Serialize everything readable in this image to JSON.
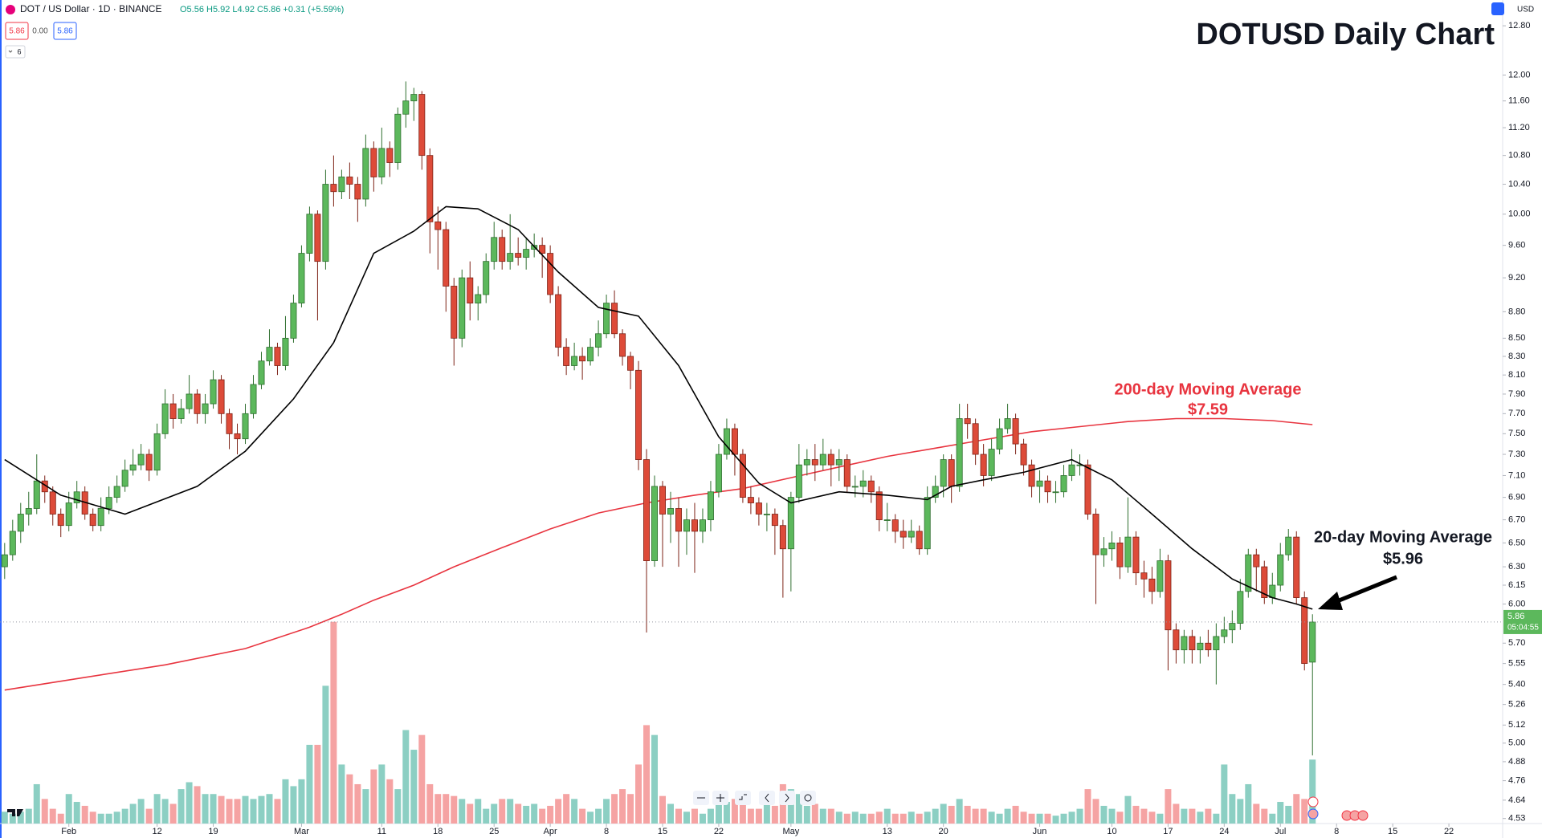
{
  "header": {
    "symbol": "DOT / US Dollar · 1D · BINANCE",
    "ohlc": "O5.56 H5.92 L4.92 C5.86 +0.31 (+5.59%)",
    "bid": "5.86",
    "spread": "0.00",
    "ask": "5.86",
    "indicators": "6",
    "currency": "USD",
    "countdown": "05:04:55"
  },
  "chart_data": {
    "type": "candlestick",
    "title": "DOTUSD Daily Chart",
    "log_scale": true,
    "grid": false,
    "up_color": "#5cb85c",
    "down_color": "#dd4b39",
    "up_border": "#2f6f2f",
    "down_border": "#7d2216",
    "volume_up_color": "#8ccfc3",
    "volume_down_color": "#f5a3a3",
    "xlim": [
      -0.58,
      186.7
    ],
    "xticks": [
      {
        "value": 8,
        "label": "Feb"
      },
      {
        "value": 19,
        "label": "12"
      },
      {
        "value": 26,
        "label": "19"
      },
      {
        "value": 37,
        "label": "Mar"
      },
      {
        "value": 47,
        "label": "11"
      },
      {
        "value": 54,
        "label": "18"
      },
      {
        "value": 61,
        "label": "25"
      },
      {
        "value": 68,
        "label": "Apr"
      },
      {
        "value": 75,
        "label": "8"
      },
      {
        "value": 82,
        "label": "15"
      },
      {
        "value": 89,
        "label": "22"
      },
      {
        "value": 98,
        "label": "May"
      },
      {
        "value": 110,
        "label": "13"
      },
      {
        "value": 117,
        "label": "20"
      },
      {
        "value": 129,
        "label": "Jun"
      },
      {
        "value": 138,
        "label": "10"
      },
      {
        "value": 145,
        "label": "17"
      },
      {
        "value": 152,
        "label": "24"
      },
      {
        "value": 159,
        "label": "Jul"
      },
      {
        "value": 166,
        "label": "8"
      },
      {
        "value": 173,
        "label": "15"
      },
      {
        "value": 180,
        "label": "22"
      }
    ],
    "ylim": [
      4.5,
      13.24
    ],
    "yticks": [
      {
        "value": 12.8,
        "label": "12.80"
      },
      {
        "value": 12,
        "label": "12.00"
      },
      {
        "value": 11.6,
        "label": "11.60"
      },
      {
        "value": 11.2,
        "label": "11.20"
      },
      {
        "value": 10.8,
        "label": "10.80"
      },
      {
        "value": 10.4,
        "label": "10.40"
      },
      {
        "value": 10,
        "label": "10.00"
      },
      {
        "value": 9.6,
        "label": "9.60"
      },
      {
        "value": 9.2,
        "label": "9.20"
      },
      {
        "value": 8.8,
        "label": "8.80"
      },
      {
        "value": 8.5,
        "label": "8.50"
      },
      {
        "value": 8.3,
        "label": "8.30"
      },
      {
        "value": 8.1,
        "label": "8.10"
      },
      {
        "value": 7.9,
        "label": "7.90"
      },
      {
        "value": 7.7,
        "label": "7.70"
      },
      {
        "value": 7.5,
        "label": "7.50"
      },
      {
        "value": 7.3,
        "label": "7.30"
      },
      {
        "value": 7.1,
        "label": "7.10"
      },
      {
        "value": 6.9,
        "label": "6.90"
      },
      {
        "value": 6.7,
        "label": "6.70"
      },
      {
        "value": 6.5,
        "label": "6.50"
      },
      {
        "value": 6.3,
        "label": "6.30"
      },
      6.15,
      {
        "value": 6,
        "label": "6.00"
      },
      {
        "value": 5.7,
        "label": "5.70"
      },
      5.55,
      {
        "value": 5.4,
        "label": "5.40"
      },
      5.26,
      5.12,
      {
        "value": 5,
        "label": "5.00"
      },
      4.88,
      4.76,
      4.64,
      4.53
    ],
    "open": [
      6.3,
      6.4,
      6.6,
      6.75,
      6.8,
      7.05,
      6.95,
      6.75,
      6.65,
      6.85,
      6.95,
      6.75,
      6.65,
      6.8,
      6.9,
      7.0,
      7.15,
      7.2,
      7.3,
      7.15,
      7.5,
      7.8,
      7.65,
      7.75,
      7.9,
      7.7,
      7.8,
      8.05,
      7.7,
      7.5,
      7.45,
      7.7,
      8.0,
      8.25,
      8.4,
      8.2,
      8.5,
      8.9,
      9.5,
      10.0,
      9.4,
      10.4,
      10.3,
      10.5,
      10.4,
      10.2,
      10.9,
      10.5,
      10.9,
      10.7,
      11.4,
      11.6,
      11.7,
      10.8,
      9.9,
      9.8,
      9.1,
      8.5,
      9.2,
      8.9,
      9.0,
      9.4,
      9.7,
      9.4,
      9.5,
      9.45,
      9.55,
      9.6,
      9.5,
      9.0,
      8.4,
      8.2,
      8.3,
      8.25,
      8.4,
      8.55,
      8.9,
      8.55,
      8.3,
      8.15,
      7.25,
      6.35,
      7.0,
      6.75,
      6.8,
      6.6,
      6.7,
      6.6,
      6.7,
      6.95,
      7.3,
      7.55,
      7.3,
      6.9,
      6.85,
      6.75,
      6.75,
      6.65,
      6.45,
      6.9,
      7.2,
      7.25,
      7.2,
      7.3,
      7.2,
      7.25,
      7.0,
      7.0,
      7.05,
      6.95,
      6.7,
      6.7,
      6.6,
      6.55,
      6.6,
      6.45,
      6.9,
      7.0,
      7.25,
      7.0,
      7.65,
      7.6,
      7.3,
      7.1,
      7.35,
      7.55,
      7.65,
      7.4,
      7.2,
      7.0,
      7.05,
      6.95,
      6.95,
      7.1,
      7.2,
      7.2,
      6.75,
      6.4,
      6.45,
      6.5,
      6.3,
      6.55,
      6.25,
      6.2,
      6.1,
      6.35,
      5.8,
      5.65,
      5.75,
      5.65,
      5.7,
      5.65,
      5.75,
      5.8,
      5.85,
      6.1,
      6.4,
      6.3,
      6.05,
      6.15,
      6.4,
      6.55,
      6.05,
      5.56
    ],
    "high": [
      6.5,
      6.7,
      6.85,
      6.95,
      7.3,
      7.1,
      7.0,
      6.8,
      6.95,
      7.05,
      7.0,
      6.8,
      6.9,
      7.0,
      7.1,
      7.25,
      7.35,
      7.4,
      7.35,
      7.6,
      7.95,
      7.9,
      7.85,
      8.1,
      7.95,
      7.9,
      8.15,
      8.1,
      7.75,
      7.6,
      7.8,
      8.1,
      8.35,
      8.6,
      8.45,
      8.75,
      9.0,
      9.6,
      10.1,
      10.05,
      10.6,
      10.8,
      10.6,
      10.7,
      10.5,
      11.1,
      11.0,
      11.2,
      11.0,
      11.5,
      11.9,
      11.8,
      11.75,
      10.9,
      10.1,
      9.9,
      9.2,
      9.3,
      9.4,
      9.1,
      9.5,
      9.9,
      9.8,
      10.0,
      9.7,
      9.7,
      9.75,
      9.7,
      9.6,
      9.1,
      8.5,
      8.45,
      8.4,
      8.5,
      8.7,
      9.0,
      9.05,
      8.6,
      8.35,
      8.25,
      7.35,
      7.1,
      7.05,
      6.95,
      6.9,
      6.8,
      6.85,
      6.8,
      7.05,
      7.4,
      7.65,
      7.6,
      7.35,
      7.0,
      6.9,
      6.85,
      6.8,
      6.7,
      6.95,
      7.4,
      7.35,
      7.4,
      7.45,
      7.35,
      7.35,
      7.3,
      7.1,
      7.15,
      7.1,
      7.0,
      6.85,
      6.75,
      6.7,
      6.7,
      6.65,
      7.0,
      7.1,
      7.3,
      7.3,
      7.8,
      7.8,
      7.65,
      7.4,
      7.45,
      7.65,
      7.8,
      7.7,
      7.45,
      7.25,
      7.15,
      7.1,
      7.05,
      7.2,
      7.35,
      7.3,
      7.25,
      6.8,
      6.55,
      6.6,
      6.55,
      6.9,
      6.6,
      6.35,
      6.3,
      6.45,
      6.4,
      5.85,
      5.8,
      5.8,
      5.75,
      5.8,
      5.85,
      5.9,
      5.95,
      6.2,
      6.45,
      6.45,
      6.35,
      6.25,
      6.5,
      6.62,
      6.6,
      6.1,
      5.92
    ],
    "low": [
      6.2,
      6.35,
      6.5,
      6.65,
      6.75,
      6.85,
      6.65,
      6.55,
      6.6,
      6.8,
      6.7,
      6.6,
      6.6,
      6.75,
      6.85,
      6.95,
      7.1,
      7.15,
      7.05,
      7.1,
      7.45,
      7.55,
      7.6,
      7.7,
      7.6,
      7.6,
      7.75,
      7.6,
      7.35,
      7.3,
      7.4,
      7.65,
      7.95,
      8.2,
      8.1,
      8.15,
      8.45,
      8.85,
      9.4,
      8.7,
      9.3,
      10.1,
      10.2,
      10.2,
      9.9,
      10.1,
      10.3,
      10.4,
      10.5,
      10.6,
      11.2,
      11.3,
      10.6,
      9.5,
      9.3,
      8.8,
      8.2,
      8.4,
      8.7,
      8.7,
      8.9,
      9.3,
      9.3,
      9.3,
      9.35,
      9.3,
      9.45,
      9.2,
      8.9,
      8.3,
      8.1,
      8.15,
      8.05,
      8.2,
      8.3,
      8.5,
      8.5,
      8.2,
      7.95,
      7.15,
      5.78,
      6.3,
      6.3,
      6.5,
      6.3,
      6.4,
      6.25,
      6.5,
      6.6,
      6.9,
      7.25,
      7.1,
      6.85,
      6.75,
      6.65,
      6.6,
      6.4,
      6.05,
      6.1,
      6.85,
      7.1,
      7.05,
      7.15,
      7.0,
      7.05,
      6.95,
      6.9,
      6.9,
      6.85,
      6.6,
      6.6,
      6.5,
      6.45,
      6.5,
      6.4,
      6.4,
      6.85,
      6.9,
      6.85,
      6.95,
      7.45,
      7.2,
      7.0,
      7.05,
      7.3,
      7.5,
      7.3,
      7.1,
      6.9,
      6.85,
      6.85,
      6.85,
      6.9,
      7.05,
      7.1,
      6.7,
      6.0,
      6.3,
      6.35,
      6.2,
      6.25,
      6.15,
      6.05,
      6.0,
      6.05,
      5.5,
      5.55,
      5.55,
      5.55,
      5.55,
      5.6,
      5.4,
      5.7,
      5.7,
      5.8,
      6.05,
      6.1,
      6.0,
      6.0,
      6.1,
      6.35,
      6.0,
      5.5,
      4.92
    ],
    "close": [
      6.4,
      6.6,
      6.75,
      6.8,
      7.05,
      6.95,
      6.75,
      6.65,
      6.85,
      6.95,
      6.75,
      6.65,
      6.8,
      6.9,
      7.0,
      7.15,
      7.2,
      7.3,
      7.15,
      7.5,
      7.8,
      7.65,
      7.75,
      7.9,
      7.7,
      7.8,
      8.05,
      7.7,
      7.5,
      7.45,
      7.7,
      8.0,
      8.25,
      8.4,
      8.2,
      8.5,
      8.9,
      9.5,
      10.0,
      9.4,
      10.4,
      10.3,
      10.5,
      10.4,
      10.2,
      10.9,
      10.5,
      10.9,
      10.7,
      11.4,
      11.6,
      11.7,
      10.8,
      9.9,
      9.8,
      9.1,
      8.5,
      9.2,
      8.9,
      9.0,
      9.4,
      9.7,
      9.4,
      9.5,
      9.45,
      9.55,
      9.6,
      9.5,
      9.0,
      8.4,
      8.2,
      8.3,
      8.25,
      8.4,
      8.55,
      8.9,
      8.55,
      8.3,
      8.15,
      7.25,
      6.35,
      7.0,
      6.75,
      6.8,
      6.6,
      6.7,
      6.6,
      6.7,
      6.95,
      7.3,
      7.55,
      7.3,
      6.9,
      6.85,
      6.75,
      6.75,
      6.65,
      6.45,
      6.9,
      7.2,
      7.25,
      7.2,
      7.3,
      7.2,
      7.25,
      7.0,
      7.0,
      7.05,
      6.95,
      6.7,
      6.7,
      6.6,
      6.55,
      6.6,
      6.45,
      6.9,
      7.0,
      7.25,
      7.0,
      7.65,
      7.6,
      7.3,
      7.1,
      7.35,
      7.55,
      7.65,
      7.4,
      7.2,
      7.0,
      7.05,
      6.95,
      6.95,
      7.1,
      7.2,
      7.2,
      6.75,
      6.4,
      6.45,
      6.5,
      6.3,
      6.55,
      6.25,
      6.2,
      6.1,
      6.35,
      5.8,
      5.65,
      5.75,
      5.65,
      5.7,
      5.65,
      5.75,
      5.8,
      5.85,
      6.1,
      6.4,
      6.3,
      6.05,
      6.15,
      6.4,
      6.55,
      6.05,
      5.55,
      5.86
    ],
    "vlim": [
      0,
      230
    ],
    "volume": [
      12,
      10,
      12,
      15,
      40,
      25,
      15,
      10,
      30,
      22,
      18,
      12,
      10,
      10,
      12,
      15,
      20,
      25,
      15,
      30,
      25,
      20,
      35,
      42,
      38,
      30,
      30,
      28,
      25,
      25,
      28,
      25,
      28,
      30,
      25,
      45,
      38,
      45,
      80,
      80,
      140,
      205,
      60,
      50,
      40,
      35,
      55,
      60,
      45,
      35,
      95,
      75,
      90,
      40,
      30,
      30,
      28,
      25,
      20,
      25,
      15,
      20,
      25,
      25,
      20,
      18,
      20,
      15,
      18,
      25,
      30,
      25,
      15,
      12,
      15,
      25,
      30,
      35,
      30,
      60,
      100,
      90,
      28,
      20,
      15,
      12,
      15,
      10,
      15,
      20,
      22,
      25,
      20,
      15,
      15,
      20,
      18,
      40,
      35,
      30,
      18,
      20,
      15,
      15,
      12,
      10,
      12,
      10,
      10,
      12,
      15,
      10,
      10,
      12,
      10,
      12,
      15,
      20,
      18,
      25,
      18,
      15,
      15,
      12,
      10,
      15,
      18,
      12,
      10,
      10,
      10,
      8,
      10,
      12,
      15,
      35,
      25,
      18,
      15,
      12,
      28,
      18,
      15,
      12,
      10,
      35,
      20,
      15,
      15,
      12,
      15,
      10,
      60,
      30,
      25,
      40,
      20,
      15,
      10,
      22,
      18,
      30,
      25,
      65
    ],
    "ma20": {
      "name": "20-day Moving Average",
      "label": "$5.96",
      "color": "#000000",
      "x": [
        0,
        7,
        15,
        24,
        30,
        36,
        41,
        46,
        51,
        55,
        59,
        64,
        69,
        74,
        79,
        84,
        89,
        94,
        98,
        104,
        110,
        115,
        118,
        122,
        127,
        133,
        138,
        143,
        148,
        153,
        158,
        161,
        163
      ],
      "values": [
        7.25,
        6.92,
        6.75,
        7.0,
        7.33,
        7.85,
        8.45,
        9.5,
        9.78,
        10.1,
        10.07,
        9.8,
        9.27,
        8.85,
        8.75,
        8.2,
        7.47,
        7.03,
        6.85,
        6.95,
        6.92,
        6.88,
        7.0,
        7.06,
        7.13,
        7.25,
        7.06,
        6.75,
        6.45,
        6.2,
        6.05,
        6.0,
        5.96
      ]
    },
    "ma200": {
      "name": "200-day Moving Average",
      "label": "$7.59",
      "color": "#e8343f",
      "x": [
        0,
        10,
        20,
        30,
        38,
        42,
        46,
        51,
        56,
        62,
        68,
        74,
        80,
        86,
        92,
        98,
        104,
        110,
        116,
        122,
        128,
        134,
        140,
        146,
        152,
        158,
        163
      ],
      "values": [
        5.36,
        5.45,
        5.54,
        5.66,
        5.82,
        5.92,
        6.03,
        6.15,
        6.3,
        6.46,
        6.62,
        6.76,
        6.85,
        6.92,
        6.98,
        7.08,
        7.18,
        7.28,
        7.36,
        7.44,
        7.52,
        7.57,
        7.62,
        7.65,
        7.65,
        7.63,
        7.59
      ]
    }
  }
}
